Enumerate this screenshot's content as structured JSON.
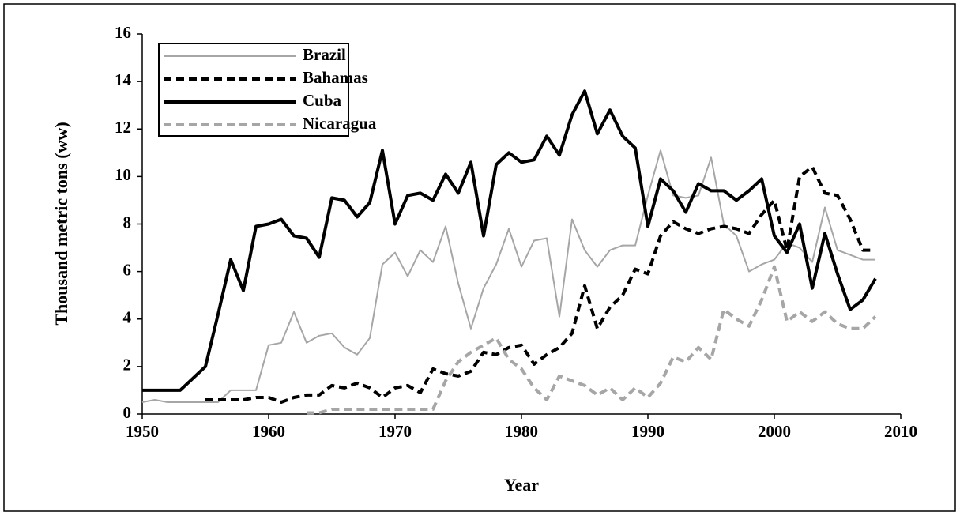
{
  "chart_data": {
    "type": "line",
    "xlabel": "Year",
    "ylabel": "Thousand metric tons (ww)",
    "x": [
      1950,
      1951,
      1952,
      1953,
      1954,
      1955,
      1956,
      1957,
      1958,
      1959,
      1960,
      1961,
      1962,
      1963,
      1964,
      1965,
      1966,
      1967,
      1968,
      1969,
      1970,
      1971,
      1972,
      1973,
      1974,
      1975,
      1976,
      1977,
      1978,
      1979,
      1980,
      1981,
      1982,
      1983,
      1984,
      1985,
      1986,
      1987,
      1988,
      1989,
      1990,
      1991,
      1992,
      1993,
      1994,
      1995,
      1996,
      1997,
      1998,
      1999,
      2000,
      2001,
      2002,
      2003,
      2004,
      2005,
      2006,
      2007,
      2008
    ],
    "series": [
      {
        "name": "Brazil",
        "color": "#a6a6a6",
        "width": 2,
        "dashed": false,
        "values": [
          0.5,
          0.6,
          0.5,
          0.5,
          0.5,
          0.5,
          0.5,
          1,
          1,
          1,
          2.9,
          3,
          4.3,
          3,
          3.3,
          3.4,
          2.8,
          2.5,
          3.2,
          6.3,
          6.8,
          5.8,
          6.9,
          6.4,
          7.9,
          5.5,
          3.6,
          5.3,
          6.3,
          7.8,
          6.2,
          7.3,
          7.4,
          4.1,
          8.2,
          6.9,
          6.2,
          6.9,
          7.1,
          7.1,
          9.2,
          11.1,
          9.2,
          9.1,
          9.2,
          10.8,
          8,
          7.5,
          6,
          6.3,
          6.5,
          7.2,
          7,
          6.4,
          8.7,
          6.9,
          6.7,
          6.5,
          6.5
        ]
      },
      {
        "name": "Bahamas",
        "color": "#000000",
        "width": 4,
        "dashed": true,
        "values": [
          null,
          null,
          null,
          null,
          null,
          0.6,
          0.6,
          0.6,
          0.6,
          0.7,
          0.7,
          0.5,
          0.7,
          0.8,
          0.8,
          1.2,
          1.1,
          1.3,
          1.1,
          0.7,
          1.1,
          1.2,
          0.9,
          1.9,
          1.7,
          1.6,
          1.8,
          2.6,
          2.5,
          2.8,
          2.9,
          2.1,
          2.5,
          2.8,
          3.4,
          5.4,
          3.6,
          4.5,
          5,
          6.1,
          5.9,
          7.5,
          8.1,
          7.8,
          7.6,
          7.8,
          7.9,
          7.8,
          7.6,
          8.4,
          9,
          6.9,
          10,
          10.4,
          9.3,
          9.2,
          8.2,
          6.9,
          6.9
        ]
      },
      {
        "name": "Cuba",
        "color": "#000000",
        "width": 4,
        "dashed": false,
        "values": [
          1,
          1,
          1,
          1,
          1.5,
          2,
          4.2,
          6.5,
          5.2,
          7.9,
          8,
          8.2,
          7.5,
          7.4,
          6.6,
          9.1,
          9,
          8.3,
          8.9,
          11.1,
          8,
          9.2,
          9.3,
          9,
          10.1,
          9.3,
          10.6,
          7.5,
          10.5,
          11,
          10.6,
          10.7,
          11.7,
          10.9,
          12.6,
          13.6,
          11.8,
          12.8,
          11.7,
          11.2,
          7.9,
          9.9,
          9.4,
          8.5,
          9.7,
          9.4,
          9.4,
          9,
          9.4,
          9.9,
          7.5,
          6.8,
          8,
          5.3,
          7.6,
          5.9,
          4.4,
          4.8,
          5.7
        ]
      },
      {
        "name": "Nicaragua",
        "color": "#a6a6a6",
        "width": 4,
        "dashed": true,
        "values": [
          null,
          null,
          null,
          null,
          null,
          null,
          null,
          null,
          null,
          null,
          null,
          null,
          null,
          0.05,
          0.05,
          0.2,
          0.2,
          0.2,
          0.2,
          0.2,
          0.2,
          0.2,
          0.2,
          0.2,
          1.4,
          2.2,
          2.6,
          2.9,
          3.2,
          2.3,
          1.9,
          1.1,
          0.6,
          1.6,
          1.4,
          1.2,
          0.8,
          1.1,
          0.6,
          1.1,
          0.7,
          1.3,
          2.4,
          2.2,
          2.8,
          2.3,
          4.4,
          4,
          3.7,
          4.8,
          6.2,
          3.9,
          4.3,
          3.9,
          4.3,
          3.8,
          3.6,
          3.6,
          4.1
        ]
      }
    ],
    "xlim": [
      1950,
      2010
    ],
    "xticks": [
      1950,
      1960,
      1970,
      1980,
      1990,
      2000,
      2010
    ],
    "ylim": [
      0,
      16
    ],
    "yticks": [
      0,
      2,
      4,
      6,
      8,
      10,
      12,
      14,
      16
    ],
    "legend": "top-left"
  }
}
